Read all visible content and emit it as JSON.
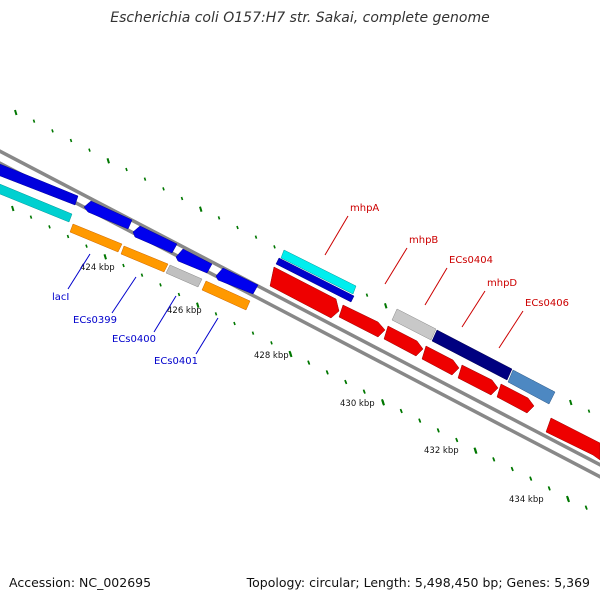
{
  "title": "Escherichia coli O157:H7 str. Sakai, complete genome",
  "accession": "Accession: NC_002695",
  "summary": "Topology: circular; Length: 5,498,450 bp; Genes: 5,369",
  "ticks": [
    {
      "label": "424 kbp"
    },
    {
      "label": "426 kbp"
    },
    {
      "label": "428 kbp"
    },
    {
      "label": "430 kbp"
    },
    {
      "label": "432 kbp"
    },
    {
      "label": "434 kbp"
    }
  ],
  "genes_top": [
    {
      "label": "lacI",
      "color": "#0000cc"
    },
    {
      "label": "ECs0399",
      "color": "#0000cc"
    },
    {
      "label": "ECs0400",
      "color": "#0000cc"
    },
    {
      "label": "ECs0401",
      "color": "#0000cc"
    }
  ],
  "genes_bottom": [
    {
      "label": "mhpA",
      "color": "#cc0000"
    },
    {
      "label": "mhpB",
      "color": "#cc0000"
    },
    {
      "label": "ECs0404",
      "color": "#cc0000"
    },
    {
      "label": "mhpD",
      "color": "#cc0000"
    },
    {
      "label": "ECs0406",
      "color": "#cc0000"
    }
  ],
  "colors": {
    "backbone": "#8c8c8c",
    "forward_gene": "#ee0000",
    "reverse_gene": "#0000ee",
    "cyan": "#00e0e0",
    "orange": "#ff9900",
    "gray": "#bbbbbb",
    "navy": "#000080",
    "steel": "#4d88c2",
    "tick_dash": "#007700"
  }
}
